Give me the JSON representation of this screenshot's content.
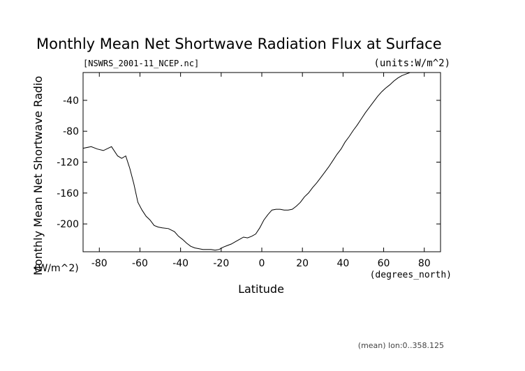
{
  "chart_data": {
    "type": "line",
    "title": "Monthly Mean Net Shortwave Radiation Flux at Surface",
    "file_label": "[NSWRS_2001-11_NCEP.nc]",
    "units_label": "(units:W/m^2)",
    "ylabel": "Monthly Mean Net Shortwave Radio",
    "ylabel_units": "(W/m^2)",
    "xlabel": "Latitude",
    "xlabel_units": "(degrees_north)",
    "footnote": "(mean) lon:0..358.125",
    "xlim": [
      -88,
      88
    ],
    "ylim": [
      -236,
      -4
    ],
    "xticks": [
      -80,
      -60,
      -40,
      -20,
      0,
      20,
      40,
      60,
      80
    ],
    "yticks": [
      -40,
      -80,
      -120,
      -160,
      -200
    ],
    "grid": false,
    "series": [
      {
        "x": [
          -88,
          -84,
          -81,
          -78,
          -74,
          -71,
          -69,
          -67,
          -65,
          -63,
          -61,
          -59,
          -57,
          -55,
          -53,
          -51,
          -49,
          -46,
          -43,
          -41,
          -39,
          -37,
          -35,
          -33,
          -31,
          -29,
          -27,
          -25,
          -23,
          -21,
          -19,
          -17,
          -15,
          -13,
          -11,
          -9,
          -7,
          -5,
          -3,
          -1,
          1,
          3,
          5,
          7,
          9,
          11,
          13,
          15,
          17,
          19,
          21,
          23,
          25,
          27,
          29,
          31,
          33,
          35,
          37,
          39,
          41,
          43,
          45,
          47,
          49,
          51,
          53,
          55,
          57,
          59,
          61,
          63,
          65,
          67,
          69,
          71,
          73,
          75,
          77,
          79,
          81,
          83,
          85,
          88
        ],
        "y": [
          -102,
          -100,
          -103,
          -105,
          -100,
          -112,
          -115,
          -112,
          -128,
          -148,
          -172,
          -182,
          -190,
          -195,
          -202,
          -204,
          -205,
          -206,
          -210,
          -216,
          -220,
          -225,
          -229,
          -231,
          -232,
          -233,
          -233,
          -233,
          -234,
          -233,
          -230,
          -228,
          -226,
          -223,
          -220,
          -217,
          -218,
          -216,
          -213,
          -205,
          -195,
          -188,
          -182,
          -181,
          -181,
          -182,
          -182,
          -181,
          -177,
          -172,
          -165,
          -160,
          -153,
          -147,
          -140,
          -133,
          -126,
          -118,
          -110,
          -103,
          -94,
          -87,
          -79,
          -72,
          -64,
          -56,
          -49,
          -42,
          -35,
          -29,
          -24,
          -20,
          -15,
          -11,
          -8,
          -6,
          -4,
          -4,
          -4,
          -4,
          -4,
          -4,
          -4,
          -4
        ]
      }
    ]
  }
}
